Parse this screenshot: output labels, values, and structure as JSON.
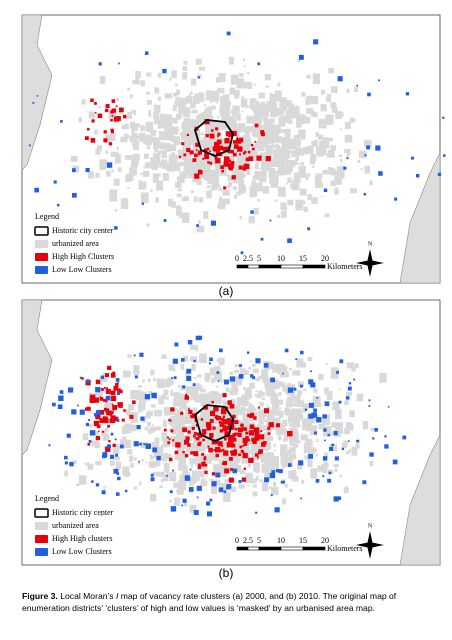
{
  "panels": [
    {
      "legend": {
        "title": "Legend",
        "items": [
          "Historic city center",
          "urbanized area",
          "High High Clusters",
          "Low Low Clusters"
        ]
      },
      "scale": {
        "ticks": [
          "0",
          "2.5",
          "5",
          "10",
          "15",
          "20"
        ],
        "unit": "Kilometers"
      },
      "north": "N",
      "label": "(a)"
    },
    {
      "legend": {
        "title": "Legend",
        "items": [
          "Historic city center",
          "urbanized area",
          "High High clusters",
          "Low Low Clusters"
        ]
      },
      "scale": {
        "ticks": [
          "0",
          "2.5",
          "5",
          "10",
          "15",
          "20"
        ],
        "unit": "Kilometers"
      },
      "north": "N",
      "label": "(b)"
    }
  ],
  "caption": {
    "label": "Figure 3.",
    "before": "Local Moran’s ",
    "italic": "I",
    "after": " map of vacancy rate clusters (a) 2000, and (b) 2010. The original map of enumeration districts’ ‘clusters’ of high and low values is ‘masked’ by an urbanised area map."
  }
}
